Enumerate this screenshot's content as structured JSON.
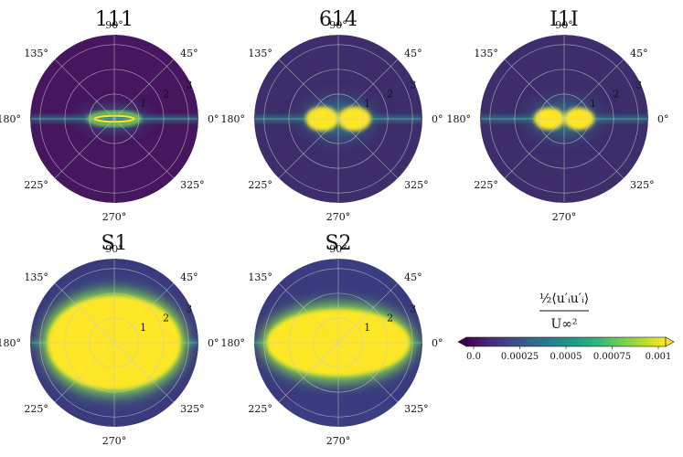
{
  "chart_data": {
    "type": "heatmap",
    "projection": "polar",
    "angle_ticks": [
      "90°",
      "45°",
      "0°",
      "325°",
      "270°",
      "225°",
      "180°",
      "135°"
    ],
    "radial_ticks": [
      "1",
      "2",
      "3"
    ],
    "panels": [
      {
        "title": "111",
        "field_level": "low",
        "blob": {
          "half_width": 1.0,
          "half_height": 0.12,
          "shape": "thin-ring"
        }
      },
      {
        "title": "614",
        "field_level": "medium",
        "blob": {
          "half_width": 1.3,
          "half_height": 0.5,
          "shape": "two-lobe"
        }
      },
      {
        "title": "I1I",
        "field_level": "medium",
        "blob": {
          "half_width": 1.2,
          "half_height": 0.45,
          "shape": "two-lobe"
        }
      },
      {
        "title": "S1",
        "field_level": "high",
        "blob": {
          "half_width": 2.7,
          "half_height": 1.9,
          "shape": "large"
        }
      },
      {
        "title": "S2",
        "field_level": "high",
        "blob": {
          "half_width": 2.9,
          "half_height": 1.35,
          "shape": "large"
        }
      }
    ],
    "colorbar": {
      "label": "½⟨u′ᵢu′ᵢ⟩ / U∞²",
      "label_numerator": "½⟨u′ᵢu′ᵢ⟩",
      "label_denominator": "U∞²",
      "ticks": [
        "0.0",
        "0.00025",
        "0.0005",
        "0.00075",
        "0.001"
      ],
      "range": [
        0.0,
        0.001
      ],
      "colormap": "viridis",
      "extend": "both"
    },
    "colors": {
      "low": "#440154",
      "mid": "#21918c",
      "high": "#fde725",
      "grid": "#c8c8c8"
    }
  }
}
